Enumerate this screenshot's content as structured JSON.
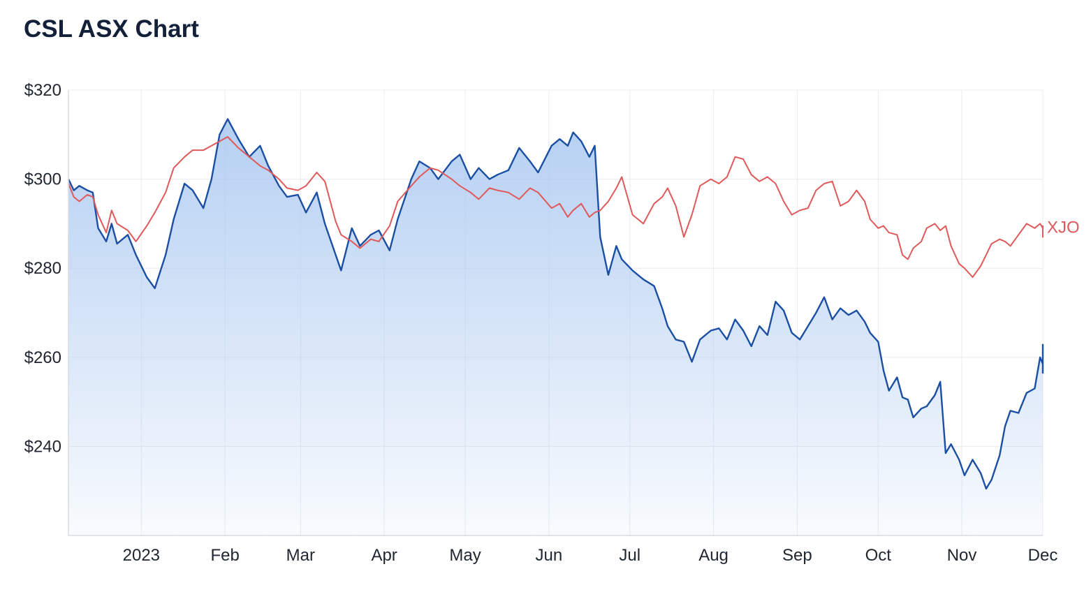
{
  "page": {
    "title": "CSL ASX Chart"
  },
  "colors": {
    "primary": "#1a4fa3",
    "primary_fill": "#a8c7f0",
    "benchmark": "#e0595a",
    "grid": "#e9ecf1",
    "axis": "#d7dbe1"
  },
  "chart_data": {
    "type": "line",
    "title": "CSL ASX Chart",
    "ylim": [
      220,
      320
    ],
    "y_ticks": [
      320,
      300,
      280,
      260,
      240
    ],
    "y_tick_labels": [
      "$320",
      "$300",
      "$280",
      "$260",
      "$240"
    ],
    "x_range": [
      "2022-12-05",
      "2023-12-01"
    ],
    "x_ticks": [
      {
        "date": "2023-01-01",
        "label": "2023"
      },
      {
        "date": "2023-02-01",
        "label": "Feb"
      },
      {
        "date": "2023-03-01",
        "label": "Mar"
      },
      {
        "date": "2023-04-01",
        "label": "Apr"
      },
      {
        "date": "2023-05-01",
        "label": "May"
      },
      {
        "date": "2023-06-01",
        "label": "Jun"
      },
      {
        "date": "2023-07-01",
        "label": "Jul"
      },
      {
        "date": "2023-08-01",
        "label": "Aug"
      },
      {
        "date": "2023-09-01",
        "label": "Sep"
      },
      {
        "date": "2023-10-01",
        "label": "Oct"
      },
      {
        "date": "2023-11-01",
        "label": "Nov"
      },
      {
        "date": "2023-12-01",
        "label": "Dec"
      }
    ],
    "grid": true,
    "series": [
      {
        "name": "",
        "color": "#1a4fa3",
        "area": true,
        "points": [
          [
            "2022-12-05",
            300.0
          ],
          [
            "2022-12-07",
            297.5
          ],
          [
            "2022-12-09",
            298.5
          ],
          [
            "2022-12-12",
            297.5
          ],
          [
            "2022-12-14",
            297.0
          ],
          [
            "2022-12-16",
            289.0
          ],
          [
            "2022-12-19",
            286.0
          ],
          [
            "2022-12-21",
            290.0
          ],
          [
            "2022-12-23",
            285.5
          ],
          [
            "2022-12-27",
            287.5
          ],
          [
            "2022-12-30",
            283.0
          ],
          [
            "2023-01-03",
            278.0
          ],
          [
            "2023-01-06",
            275.5
          ],
          [
            "2023-01-10",
            283.0
          ],
          [
            "2023-01-13",
            291.0
          ],
          [
            "2023-01-17",
            299.0
          ],
          [
            "2023-01-20",
            297.5
          ],
          [
            "2023-01-24",
            293.5
          ],
          [
            "2023-01-27",
            300.0
          ],
          [
            "2023-01-30",
            310.0
          ],
          [
            "2023-02-02",
            313.5
          ],
          [
            "2023-02-06",
            309.0
          ],
          [
            "2023-02-10",
            305.0
          ],
          [
            "2023-02-14",
            307.5
          ],
          [
            "2023-02-17",
            303.0
          ],
          [
            "2023-02-21",
            298.5
          ],
          [
            "2023-02-24",
            296.0
          ],
          [
            "2023-02-28",
            296.5
          ],
          [
            "2023-03-03",
            292.5
          ],
          [
            "2023-03-07",
            297.0
          ],
          [
            "2023-03-10",
            290.0
          ],
          [
            "2023-03-14",
            283.0
          ],
          [
            "2023-03-16",
            279.5
          ],
          [
            "2023-03-20",
            289.0
          ],
          [
            "2023-03-23",
            285.0
          ],
          [
            "2023-03-27",
            287.5
          ],
          [
            "2023-03-30",
            288.5
          ],
          [
            "2023-04-03",
            284.0
          ],
          [
            "2023-04-06",
            291.0
          ],
          [
            "2023-04-11",
            300.0
          ],
          [
            "2023-04-14",
            304.0
          ],
          [
            "2023-04-18",
            302.5
          ],
          [
            "2023-04-21",
            300.0
          ],
          [
            "2023-04-26",
            304.0
          ],
          [
            "2023-04-29",
            305.5
          ],
          [
            "2023-05-03",
            300.0
          ],
          [
            "2023-05-06",
            302.5
          ],
          [
            "2023-05-10",
            300.0
          ],
          [
            "2023-05-13",
            301.0
          ],
          [
            "2023-05-17",
            302.0
          ],
          [
            "2023-05-21",
            307.0
          ],
          [
            "2023-05-25",
            304.0
          ],
          [
            "2023-05-28",
            301.5
          ],
          [
            "2023-06-02",
            307.5
          ],
          [
            "2023-06-05",
            309.0
          ],
          [
            "2023-06-08",
            307.5
          ],
          [
            "2023-06-10",
            310.5
          ],
          [
            "2023-06-13",
            308.5
          ],
          [
            "2023-06-16",
            305.0
          ],
          [
            "2023-06-18",
            307.5
          ],
          [
            "2023-06-20",
            287.0
          ],
          [
            "2023-06-23",
            278.5
          ],
          [
            "2023-06-26",
            285.0
          ],
          [
            "2023-06-28",
            282.0
          ],
          [
            "2023-07-02",
            279.5
          ],
          [
            "2023-07-06",
            277.5
          ],
          [
            "2023-07-10",
            276.0
          ],
          [
            "2023-07-13",
            271.0
          ],
          [
            "2023-07-15",
            267.0
          ],
          [
            "2023-07-18",
            264.0
          ],
          [
            "2023-07-21",
            263.5
          ],
          [
            "2023-07-24",
            259.0
          ],
          [
            "2023-07-27",
            264.0
          ],
          [
            "2023-07-31",
            266.0
          ],
          [
            "2023-08-03",
            266.5
          ],
          [
            "2023-08-06",
            264.0
          ],
          [
            "2023-08-09",
            268.5
          ],
          [
            "2023-08-12",
            266.0
          ],
          [
            "2023-08-15",
            262.5
          ],
          [
            "2023-08-18",
            267.0
          ],
          [
            "2023-08-21",
            265.0
          ],
          [
            "2023-08-24",
            272.5
          ],
          [
            "2023-08-27",
            270.5
          ],
          [
            "2023-08-30",
            265.5
          ],
          [
            "2023-09-02",
            264.0
          ],
          [
            "2023-09-05",
            267.0
          ],
          [
            "2023-09-08",
            270.0
          ],
          [
            "2023-09-11",
            273.5
          ],
          [
            "2023-09-14",
            268.5
          ],
          [
            "2023-09-17",
            271.0
          ],
          [
            "2023-09-20",
            269.5
          ],
          [
            "2023-09-23",
            270.5
          ],
          [
            "2023-09-26",
            268.0
          ],
          [
            "2023-09-28",
            265.5
          ],
          [
            "2023-10-01",
            263.5
          ],
          [
            "2023-10-03",
            257.0
          ],
          [
            "2023-10-05",
            252.5
          ],
          [
            "2023-10-08",
            255.5
          ],
          [
            "2023-10-10",
            251.0
          ],
          [
            "2023-10-12",
            250.5
          ],
          [
            "2023-10-14",
            246.5
          ],
          [
            "2023-10-17",
            248.5
          ],
          [
            "2023-10-19",
            249.0
          ],
          [
            "2023-10-22",
            251.5
          ],
          [
            "2023-10-24",
            254.5
          ],
          [
            "2023-10-26",
            238.5
          ],
          [
            "2023-10-28",
            240.5
          ],
          [
            "2023-10-31",
            237.0
          ],
          [
            "2023-11-02",
            233.5
          ],
          [
            "2023-11-05",
            237.0
          ],
          [
            "2023-11-08",
            234.0
          ],
          [
            "2023-11-10",
            230.5
          ],
          [
            "2023-11-12",
            232.5
          ],
          [
            "2023-11-15",
            238.0
          ],
          [
            "2023-11-17",
            244.5
          ],
          [
            "2023-11-19",
            248.0
          ],
          [
            "2023-11-22",
            247.5
          ],
          [
            "2023-11-25",
            252.0
          ],
          [
            "2023-11-28",
            253.0
          ],
          [
            "2023-11-30",
            260.0
          ],
          [
            "2023-12-02",
            258.5
          ],
          [
            "2023-12-04",
            257.0
          ],
          [
            "2023-12-06",
            258.5
          ],
          [
            "2023-12-08",
            256.5
          ],
          [
            "2023-12-10",
            261.5
          ],
          [
            "2023-12-12",
            263.0
          ]
        ]
      },
      {
        "name": "XJO",
        "color": "#e0595a",
        "area": false,
        "points": [
          [
            "2022-12-05",
            299.0
          ],
          [
            "2022-12-07",
            296.0
          ],
          [
            "2022-12-09",
            295.0
          ],
          [
            "2022-12-12",
            296.5
          ],
          [
            "2022-12-14",
            296.0
          ],
          [
            "2022-12-16",
            292.0
          ],
          [
            "2022-12-19",
            288.0
          ],
          [
            "2022-12-21",
            293.0
          ],
          [
            "2022-12-23",
            290.0
          ],
          [
            "2022-12-27",
            288.5
          ],
          [
            "2022-12-30",
            286.0
          ],
          [
            "2023-01-03",
            289.5
          ],
          [
            "2023-01-06",
            292.5
          ],
          [
            "2023-01-10",
            297.0
          ],
          [
            "2023-01-13",
            302.5
          ],
          [
            "2023-01-17",
            305.0
          ],
          [
            "2023-01-20",
            306.5
          ],
          [
            "2023-01-24",
            306.5
          ],
          [
            "2023-01-27",
            307.5
          ],
          [
            "2023-01-30",
            308.5
          ],
          [
            "2023-02-02",
            309.5
          ],
          [
            "2023-02-06",
            307.0
          ],
          [
            "2023-02-10",
            305.0
          ],
          [
            "2023-02-14",
            303.0
          ],
          [
            "2023-02-17",
            302.0
          ],
          [
            "2023-02-21",
            300.0
          ],
          [
            "2023-02-24",
            298.0
          ],
          [
            "2023-02-28",
            297.5
          ],
          [
            "2023-03-03",
            298.5
          ],
          [
            "2023-03-07",
            301.5
          ],
          [
            "2023-03-10",
            299.5
          ],
          [
            "2023-03-14",
            290.5
          ],
          [
            "2023-03-16",
            287.5
          ],
          [
            "2023-03-20",
            286.0
          ],
          [
            "2023-03-23",
            284.5
          ],
          [
            "2023-03-27",
            286.5
          ],
          [
            "2023-03-30",
            286.0
          ],
          [
            "2023-04-03",
            289.5
          ],
          [
            "2023-04-06",
            295.0
          ],
          [
            "2023-04-11",
            298.5
          ],
          [
            "2023-04-14",
            300.5
          ],
          [
            "2023-04-18",
            302.5
          ],
          [
            "2023-04-21",
            302.0
          ],
          [
            "2023-04-26",
            300.0
          ],
          [
            "2023-04-29",
            298.5
          ],
          [
            "2023-05-03",
            297.0
          ],
          [
            "2023-05-06",
            295.5
          ],
          [
            "2023-05-10",
            298.0
          ],
          [
            "2023-05-13",
            297.5
          ],
          [
            "2023-05-17",
            297.0
          ],
          [
            "2023-05-21",
            295.5
          ],
          [
            "2023-05-25",
            298.0
          ],
          [
            "2023-05-28",
            297.0
          ],
          [
            "2023-06-02",
            293.5
          ],
          [
            "2023-06-05",
            294.5
          ],
          [
            "2023-06-08",
            291.5
          ],
          [
            "2023-06-10",
            293.0
          ],
          [
            "2023-06-13",
            294.5
          ],
          [
            "2023-06-16",
            291.5
          ],
          [
            "2023-06-18",
            292.5
          ],
          [
            "2023-06-20",
            293.0
          ],
          [
            "2023-06-23",
            295.0
          ],
          [
            "2023-06-26",
            298.0
          ],
          [
            "2023-06-28",
            300.5
          ],
          [
            "2023-07-02",
            292.0
          ],
          [
            "2023-07-06",
            290.0
          ],
          [
            "2023-07-10",
            294.5
          ],
          [
            "2023-07-13",
            296.0
          ],
          [
            "2023-07-15",
            298.0
          ],
          [
            "2023-07-18",
            294.0
          ],
          [
            "2023-07-21",
            287.0
          ],
          [
            "2023-07-24",
            292.0
          ],
          [
            "2023-07-27",
            298.5
          ],
          [
            "2023-07-31",
            300.0
          ],
          [
            "2023-08-03",
            299.0
          ],
          [
            "2023-08-06",
            300.5
          ],
          [
            "2023-08-09",
            305.0
          ],
          [
            "2023-08-12",
            304.5
          ],
          [
            "2023-08-15",
            301.0
          ],
          [
            "2023-08-18",
            299.5
          ],
          [
            "2023-08-21",
            300.5
          ],
          [
            "2023-08-24",
            299.0
          ],
          [
            "2023-08-27",
            295.0
          ],
          [
            "2023-08-30",
            292.0
          ],
          [
            "2023-09-02",
            293.0
          ],
          [
            "2023-09-05",
            293.5
          ],
          [
            "2023-09-08",
            297.5
          ],
          [
            "2023-09-11",
            299.0
          ],
          [
            "2023-09-14",
            299.5
          ],
          [
            "2023-09-17",
            294.0
          ],
          [
            "2023-09-20",
            295.0
          ],
          [
            "2023-09-23",
            297.5
          ],
          [
            "2023-09-26",
            295.0
          ],
          [
            "2023-09-28",
            291.0
          ],
          [
            "2023-10-01",
            289.0
          ],
          [
            "2023-10-03",
            289.5
          ],
          [
            "2023-10-05",
            288.0
          ],
          [
            "2023-10-08",
            287.5
          ],
          [
            "2023-10-10",
            283.0
          ],
          [
            "2023-10-12",
            282.0
          ],
          [
            "2023-10-14",
            284.5
          ],
          [
            "2023-10-17",
            286.0
          ],
          [
            "2023-10-19",
            289.0
          ],
          [
            "2023-10-22",
            290.0
          ],
          [
            "2023-10-24",
            288.5
          ],
          [
            "2023-10-26",
            289.5
          ],
          [
            "2023-10-28",
            285.0
          ],
          [
            "2023-10-31",
            281.0
          ],
          [
            "2023-11-02",
            280.0
          ],
          [
            "2023-11-05",
            278.0
          ],
          [
            "2023-11-08",
            280.5
          ],
          [
            "2023-11-10",
            283.0
          ],
          [
            "2023-11-12",
            285.5
          ],
          [
            "2023-11-15",
            286.5
          ],
          [
            "2023-11-17",
            286.0
          ],
          [
            "2023-11-19",
            285.0
          ],
          [
            "2023-11-22",
            287.5
          ],
          [
            "2023-11-25",
            290.0
          ],
          [
            "2023-11-28",
            289.0
          ],
          [
            "2023-11-30",
            290.0
          ],
          [
            "2023-12-02",
            289.0
          ],
          [
            "2023-12-04",
            287.0
          ],
          [
            "2023-12-06",
            288.0
          ],
          [
            "2023-12-08",
            289.5
          ],
          [
            "2023-12-10",
            289.0
          ],
          [
            "2023-12-12",
            289.5
          ]
        ]
      }
    ]
  }
}
